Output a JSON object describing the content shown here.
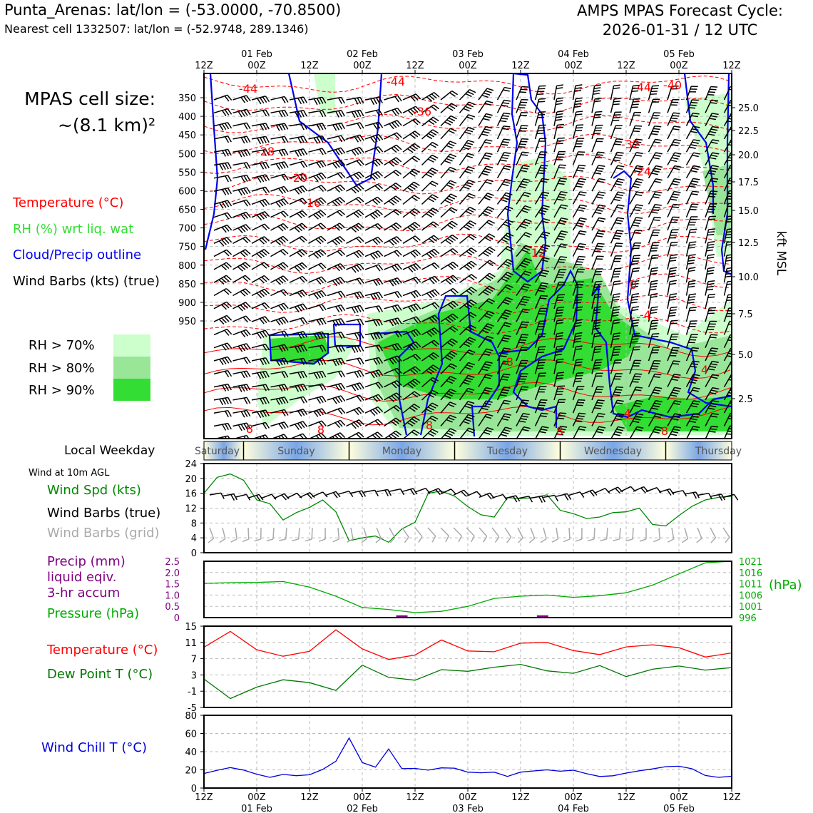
{
  "header": {
    "location_line": "Punta_Arenas: lat/lon = (-53.0000, -70.8500)",
    "cell_line": "Nearest cell 1332507: lat/lon = (-52.9748, 289.1346)",
    "cycle_line1": "AMPS MPAS Forecast Cycle:",
    "cycle_line2": "2026-01-31 / 12 UTC"
  },
  "cell_size": {
    "line1": "MPAS cell size:",
    "line2": "~(8.1 km)²"
  },
  "legend": {
    "temperature": "Temperature (°C)",
    "rh": "RH (%) wrt liq. wat",
    "cloud": "Cloud/Precip outline",
    "barbs": "Wind Barbs (kts) (true)",
    "rh70": "RH > 70%",
    "rh80": "RH > 80%",
    "rh90": "RH > 90%"
  },
  "colors": {
    "temperature": "#ff0000",
    "rh_text": "#33dd33",
    "cloud": "#0000ee",
    "rh70": "#ccffcc",
    "rh80": "#99e699",
    "rh90": "#33dd33",
    "wind_speed": "#008800",
    "pressure": "#00aa00",
    "precip": "#800080",
    "dewpoint": "#007700",
    "wind_chill": "#0000dd",
    "grid_barbs": "#aaaaaa"
  },
  "time_axis": {
    "ticks": [
      "12Z",
      "00Z",
      "12Z",
      "00Z",
      "12Z",
      "00Z",
      "12Z",
      "00Z",
      "12Z",
      "00Z",
      "12Z"
    ],
    "dates": [
      "01 Feb",
      "02 Feb",
      "03 Feb",
      "04 Feb",
      "05 Feb"
    ]
  },
  "weekday": {
    "label": "Local Weekday",
    "days": [
      "Saturday",
      "Sunday",
      "Monday",
      "Tuesday",
      "Wednesday",
      "Thursday"
    ]
  },
  "panels": {
    "wind_note": "Wind at 10m AGL",
    "wind_speed": "Wind Spd (kts)",
    "wind_barbs_true": "Wind Barbs (true)",
    "wind_barbs_grid": "Wind Barbs (grid)",
    "precip1": "Precip (mm)",
    "precip2": "liquid eqiv.",
    "precip3": "3-hr accum",
    "pressure": "Pressure (hPa)",
    "pressure_unit": "(hPa)",
    "temperature": "Temperature (°C)",
    "dewpoint": "Dew Point T (°C)",
    "wind_chill": "Wind Chill T (°C)"
  },
  "chart_data": [
    {
      "type": "heatmap",
      "name": "cross-section",
      "ylabel_right": "kft MSL",
      "y_ticks_hpa": [
        "350",
        "400",
        "450",
        "500",
        "550",
        "600",
        "650",
        "700",
        "750",
        "800",
        "850",
        "900",
        "950"
      ],
      "y_ticks_kft": [
        "25.0",
        "22.5",
        "20.0",
        "17.5",
        "15.0",
        "12.5",
        "10.0",
        "7.5",
        "5.0",
        "2.5"
      ],
      "temperature_contour_labels": [
        "-44",
        "-44",
        "-36",
        "-44",
        "-40",
        "-28",
        "-32",
        "-20",
        "-24",
        "-16",
        "-12",
        "-8",
        "-4",
        "0",
        "4",
        "4",
        "8",
        "8",
        "8",
        "8",
        "8"
      ]
    },
    {
      "type": "line",
      "name": "wind-speed",
      "ylim": [
        0,
        24
      ],
      "yticks": [
        "0",
        "4",
        "8",
        "12",
        "16",
        "20",
        "24"
      ],
      "x_hours": [
        0,
        3,
        6,
        9,
        12,
        15,
        18,
        21,
        24,
        27,
        30,
        33,
        36,
        39,
        42,
        45,
        48,
        51,
        54,
        57,
        60,
        63,
        66,
        69,
        72,
        75,
        78,
        81,
        84,
        87,
        90,
        93,
        96,
        99,
        102,
        105,
        108,
        111,
        114,
        117,
        120
      ],
      "values": [
        16,
        20.3,
        21.2,
        19.5,
        14.2,
        13.2,
        8.8,
        10.8,
        12.2,
        14.2,
        11,
        3.2,
        4,
        4.5,
        2.8,
        6.4,
        8.2,
        16,
        16.6,
        15.2,
        12.4,
        10.2,
        9.6,
        14.8,
        14.6,
        14.8,
        15.6,
        11.4,
        10.5,
        9.2,
        9.6,
        10.8,
        11,
        12,
        7.6,
        7.2,
        10,
        12.5,
        14.2,
        14.9,
        15.2
      ]
    },
    {
      "type": "line",
      "name": "pressure",
      "ylim": [
        996,
        1021
      ],
      "yticks_right": [
        "996",
        "1001",
        "1006",
        "1011",
        "1016",
        "1021"
      ],
      "yticks_left_precip": [
        "0",
        "0.5",
        "1.0",
        "1.5",
        "2.0",
        "2.5"
      ],
      "x_hours": [
        0,
        6,
        12,
        18,
        24,
        30,
        36,
        42,
        48,
        54,
        60,
        66,
        72,
        78,
        84,
        90,
        96,
        102,
        108,
        114,
        120
      ],
      "values": [
        1011.2,
        1011.5,
        1011.6,
        1012,
        1009.5,
        1005.5,
        1000.5,
        999.6,
        998.2,
        998.8,
        1001,
        1004.5,
        1005.5,
        1006,
        1005,
        1005.7,
        1007,
        1010.4,
        1015.4,
        1020.3,
        1021
      ],
      "precip_x_hours": [
        45,
        77
      ],
      "precip_mm": [
        0.1,
        0.1
      ]
    },
    {
      "type": "line",
      "name": "temperature-dewpoint",
      "ylim": [
        -5,
        15
      ],
      "yticks": [
        "-5",
        "-1",
        "3",
        "7",
        "11",
        "15"
      ],
      "x_hours": [
        0,
        6,
        12,
        18,
        24,
        30,
        36,
        42,
        48,
        54,
        60,
        66,
        72,
        78,
        84,
        90,
        96,
        102,
        108,
        114,
        120
      ],
      "series": [
        {
          "name": "Temperature (°C)",
          "values": [
            9.8,
            13.7,
            9.2,
            7.6,
            8.8,
            14.1,
            9.4,
            6.8,
            7.9,
            11.6,
            8.9,
            8.7,
            10.8,
            11,
            9,
            8,
            9.9,
            10.4,
            9.7,
            7.4,
            8.4
          ]
        },
        {
          "name": "Dew Point T (°C)",
          "values": [
            2,
            -2.8,
            0,
            1.8,
            1.1,
            -0.8,
            5.4,
            2.4,
            1.7,
            4.3,
            3.9,
            4.9,
            5.6,
            4,
            3.4,
            5.3,
            2.6,
            4.4,
            5.2,
            4.2,
            4.8
          ]
        }
      ]
    },
    {
      "type": "line",
      "name": "wind-chill",
      "ylim": [
        0,
        80
      ],
      "yticks": [
        "0",
        "20",
        "40",
        "60",
        "80"
      ],
      "x_hours": [
        0,
        3,
        6,
        9,
        12,
        15,
        18,
        21,
        24,
        27,
        30,
        33,
        36,
        39,
        42,
        45,
        48,
        51,
        54,
        57,
        60,
        63,
        66,
        69,
        72,
        75,
        78,
        81,
        84,
        87,
        90,
        93,
        96,
        99,
        102,
        105,
        108,
        111,
        114,
        117,
        120
      ],
      "values": [
        16,
        19.5,
        22.5,
        19.8,
        15.2,
        11.8,
        15,
        13.6,
        14.6,
        20.5,
        29.5,
        55,
        28,
        23,
        43,
        21.3,
        21.6,
        19.7,
        22.2,
        21.8,
        17.5,
        16.8,
        17.5,
        12.8,
        17.5,
        18.8,
        20,
        18.5,
        19.6,
        15.8,
        12.7,
        13.5,
        16.5,
        19,
        21,
        23.5,
        24,
        21.2,
        13.8,
        11.8,
        13
      ]
    }
  ]
}
